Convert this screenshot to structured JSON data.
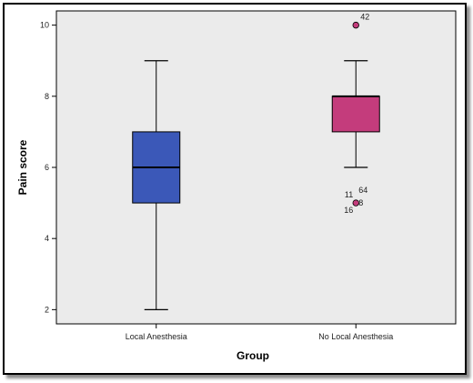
{
  "chart_data": {
    "type": "box",
    "title": "",
    "xlabel": "Group",
    "ylabel": "Pain score",
    "ylim": [
      1.6,
      10.4
    ],
    "yticks": [
      2,
      4,
      6,
      8,
      10
    ],
    "grid": false,
    "background": "#ebebeb",
    "categories": [
      "Local Anesthesia",
      "No Local Anesthesia"
    ],
    "boxes": [
      {
        "category": "Local Anesthesia",
        "whisker_low": 2,
        "q1": 5,
        "median": 6,
        "q3": 7,
        "whisker_high": 9,
        "color": "#3b58b8",
        "outliers": []
      },
      {
        "category": "No Local Anesthesia",
        "whisker_low": 6,
        "q1": 7,
        "median": 8,
        "q3": 8,
        "whisker_high": 9,
        "color": "#c43c7c",
        "outliers": [
          {
            "value": 10,
            "labels": [
              "42"
            ]
          },
          {
            "value": 5,
            "labels": [
              "11",
              "64",
              "8",
              "16"
            ]
          }
        ]
      }
    ]
  }
}
